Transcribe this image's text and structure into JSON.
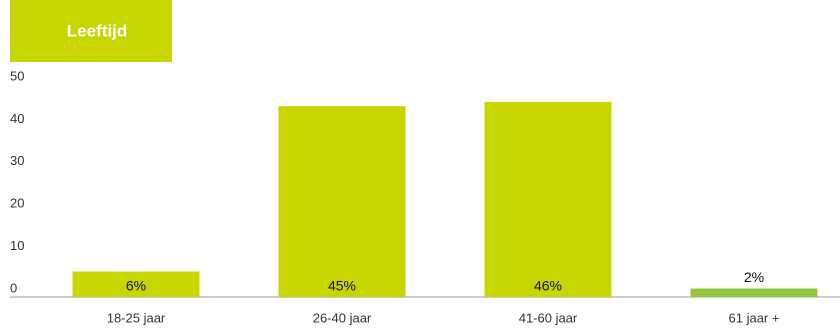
{
  "chart_data": {
    "type": "bar",
    "title": "Leeftijd",
    "categories": [
      "18-25 jaar",
      "26-40 jaar",
      "41-60 jaar",
      "61 jaar +"
    ],
    "values": [
      6,
      45,
      46,
      2
    ],
    "value_labels": [
      "6%",
      "45%",
      "46%",
      "2%"
    ],
    "colors": [
      "#c5d600",
      "#c5d600",
      "#c5d600",
      "#93c83e"
    ],
    "ylim": [
      0,
      50
    ],
    "yticks": [
      0,
      10,
      20,
      30,
      40,
      50
    ],
    "grid": false
  }
}
